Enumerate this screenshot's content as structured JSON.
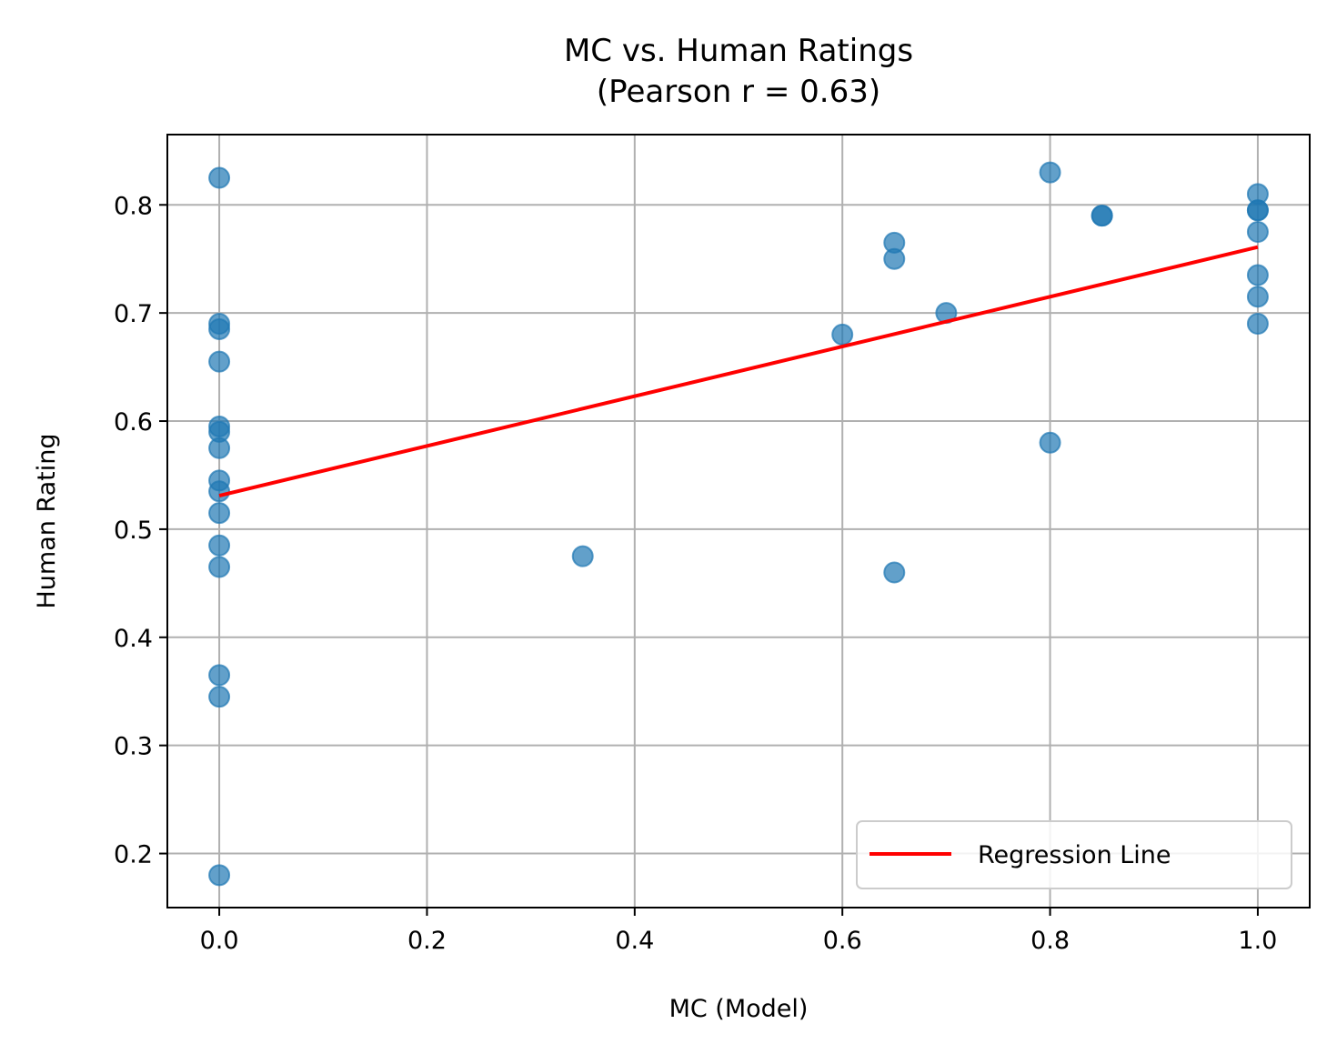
{
  "chart_data": {
    "type": "scatter",
    "title": "MC vs. Human Ratings",
    "subtitle": "(Pearson r = 0.63)",
    "xlabel": "MC (Model)",
    "ylabel": "Human Rating",
    "xlim": [
      -0.05,
      1.05
    ],
    "ylim": [
      0.15,
      0.865
    ],
    "xticks": [
      0.0,
      0.2,
      0.4,
      0.6,
      0.8,
      1.0
    ],
    "xtick_labels": [
      "0.0",
      "0.2",
      "0.4",
      "0.6",
      "0.8",
      "1.0"
    ],
    "yticks": [
      0.2,
      0.3,
      0.4,
      0.5,
      0.6,
      0.7,
      0.8
    ],
    "ytick_labels": [
      "0.2",
      "0.3",
      "0.4",
      "0.5",
      "0.6",
      "0.7",
      "0.8"
    ],
    "grid": true,
    "legend_position": "lower-right",
    "series": [
      {
        "kind": "scatter",
        "color": "#1f77b4",
        "points": [
          [
            0.0,
            0.825
          ],
          [
            0.0,
            0.69
          ],
          [
            0.0,
            0.685
          ],
          [
            0.0,
            0.655
          ],
          [
            0.0,
            0.595
          ],
          [
            0.0,
            0.59
          ],
          [
            0.0,
            0.575
          ],
          [
            0.0,
            0.545
          ],
          [
            0.0,
            0.535
          ],
          [
            0.0,
            0.515
          ],
          [
            0.0,
            0.485
          ],
          [
            0.0,
            0.465
          ],
          [
            0.0,
            0.365
          ],
          [
            0.0,
            0.345
          ],
          [
            0.0,
            0.18
          ],
          [
            0.35,
            0.475
          ],
          [
            0.6,
            0.68
          ],
          [
            0.65,
            0.765
          ],
          [
            0.65,
            0.75
          ],
          [
            0.65,
            0.46
          ],
          [
            0.7,
            0.7
          ],
          [
            0.8,
            0.83
          ],
          [
            0.8,
            0.58
          ],
          [
            0.85,
            0.79
          ],
          [
            0.85,
            0.79
          ],
          [
            1.0,
            0.81
          ],
          [
            1.0,
            0.795
          ],
          [
            1.0,
            0.795
          ],
          [
            1.0,
            0.775
          ],
          [
            1.0,
            0.735
          ],
          [
            1.0,
            0.715
          ],
          [
            1.0,
            0.69
          ]
        ]
      },
      {
        "kind": "line",
        "name": "Regression Line",
        "color": "#ff0000",
        "points": [
          [
            0.0,
            0.531
          ],
          [
            1.0,
            0.761
          ]
        ]
      }
    ]
  }
}
